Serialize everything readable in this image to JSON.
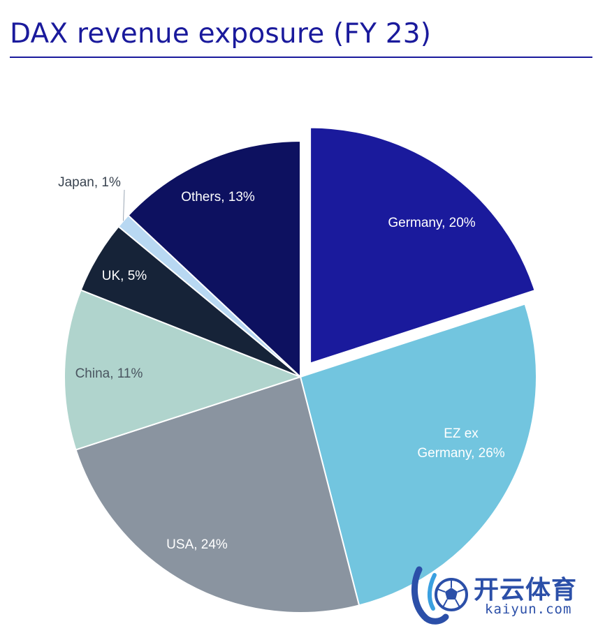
{
  "title": "DAX revenue exposure (FY 23)",
  "chart_data": {
    "type": "pie",
    "title": "DAX revenue exposure (FY 23)",
    "unit": "%",
    "slices": [
      {
        "label": "Germany, 20%",
        "value": 20,
        "color": "#1a1a9c",
        "exploded": true,
        "label_color": "#ffffff"
      },
      {
        "label": "EZ ex Germany, 26%",
        "label_lines": [
          "EZ ex",
          "Germany, 26%"
        ],
        "value": 26,
        "color": "#72c5df",
        "exploded": false,
        "label_color": "#ffffff"
      },
      {
        "label": "USA, 24%",
        "value": 24,
        "color": "#8a94a0",
        "exploded": false,
        "label_color": "#ffffff"
      },
      {
        "label": "China, 11%",
        "value": 11,
        "color": "#b0d4cd",
        "exploded": false,
        "label_color": "#4a5560"
      },
      {
        "label": "UK, 5%",
        "value": 5,
        "color": "#162338",
        "exploded": false,
        "label_color": "#ffffff"
      },
      {
        "label": "Japan, 1%",
        "value": 1,
        "color": "#b8d8f2",
        "exploded": false,
        "label_color": "#3a4450",
        "outside_label": true
      },
      {
        "label": "Others, 13%",
        "value": 13,
        "color": "#0d1160",
        "exploded": false,
        "label_color": "#ffffff"
      }
    ]
  },
  "watermark": {
    "brand_cn": "开云体育",
    "brand_en": "kaiyun.com",
    "colors": {
      "primary": "#2b4fa8",
      "accent": "#3aa0e0"
    }
  }
}
